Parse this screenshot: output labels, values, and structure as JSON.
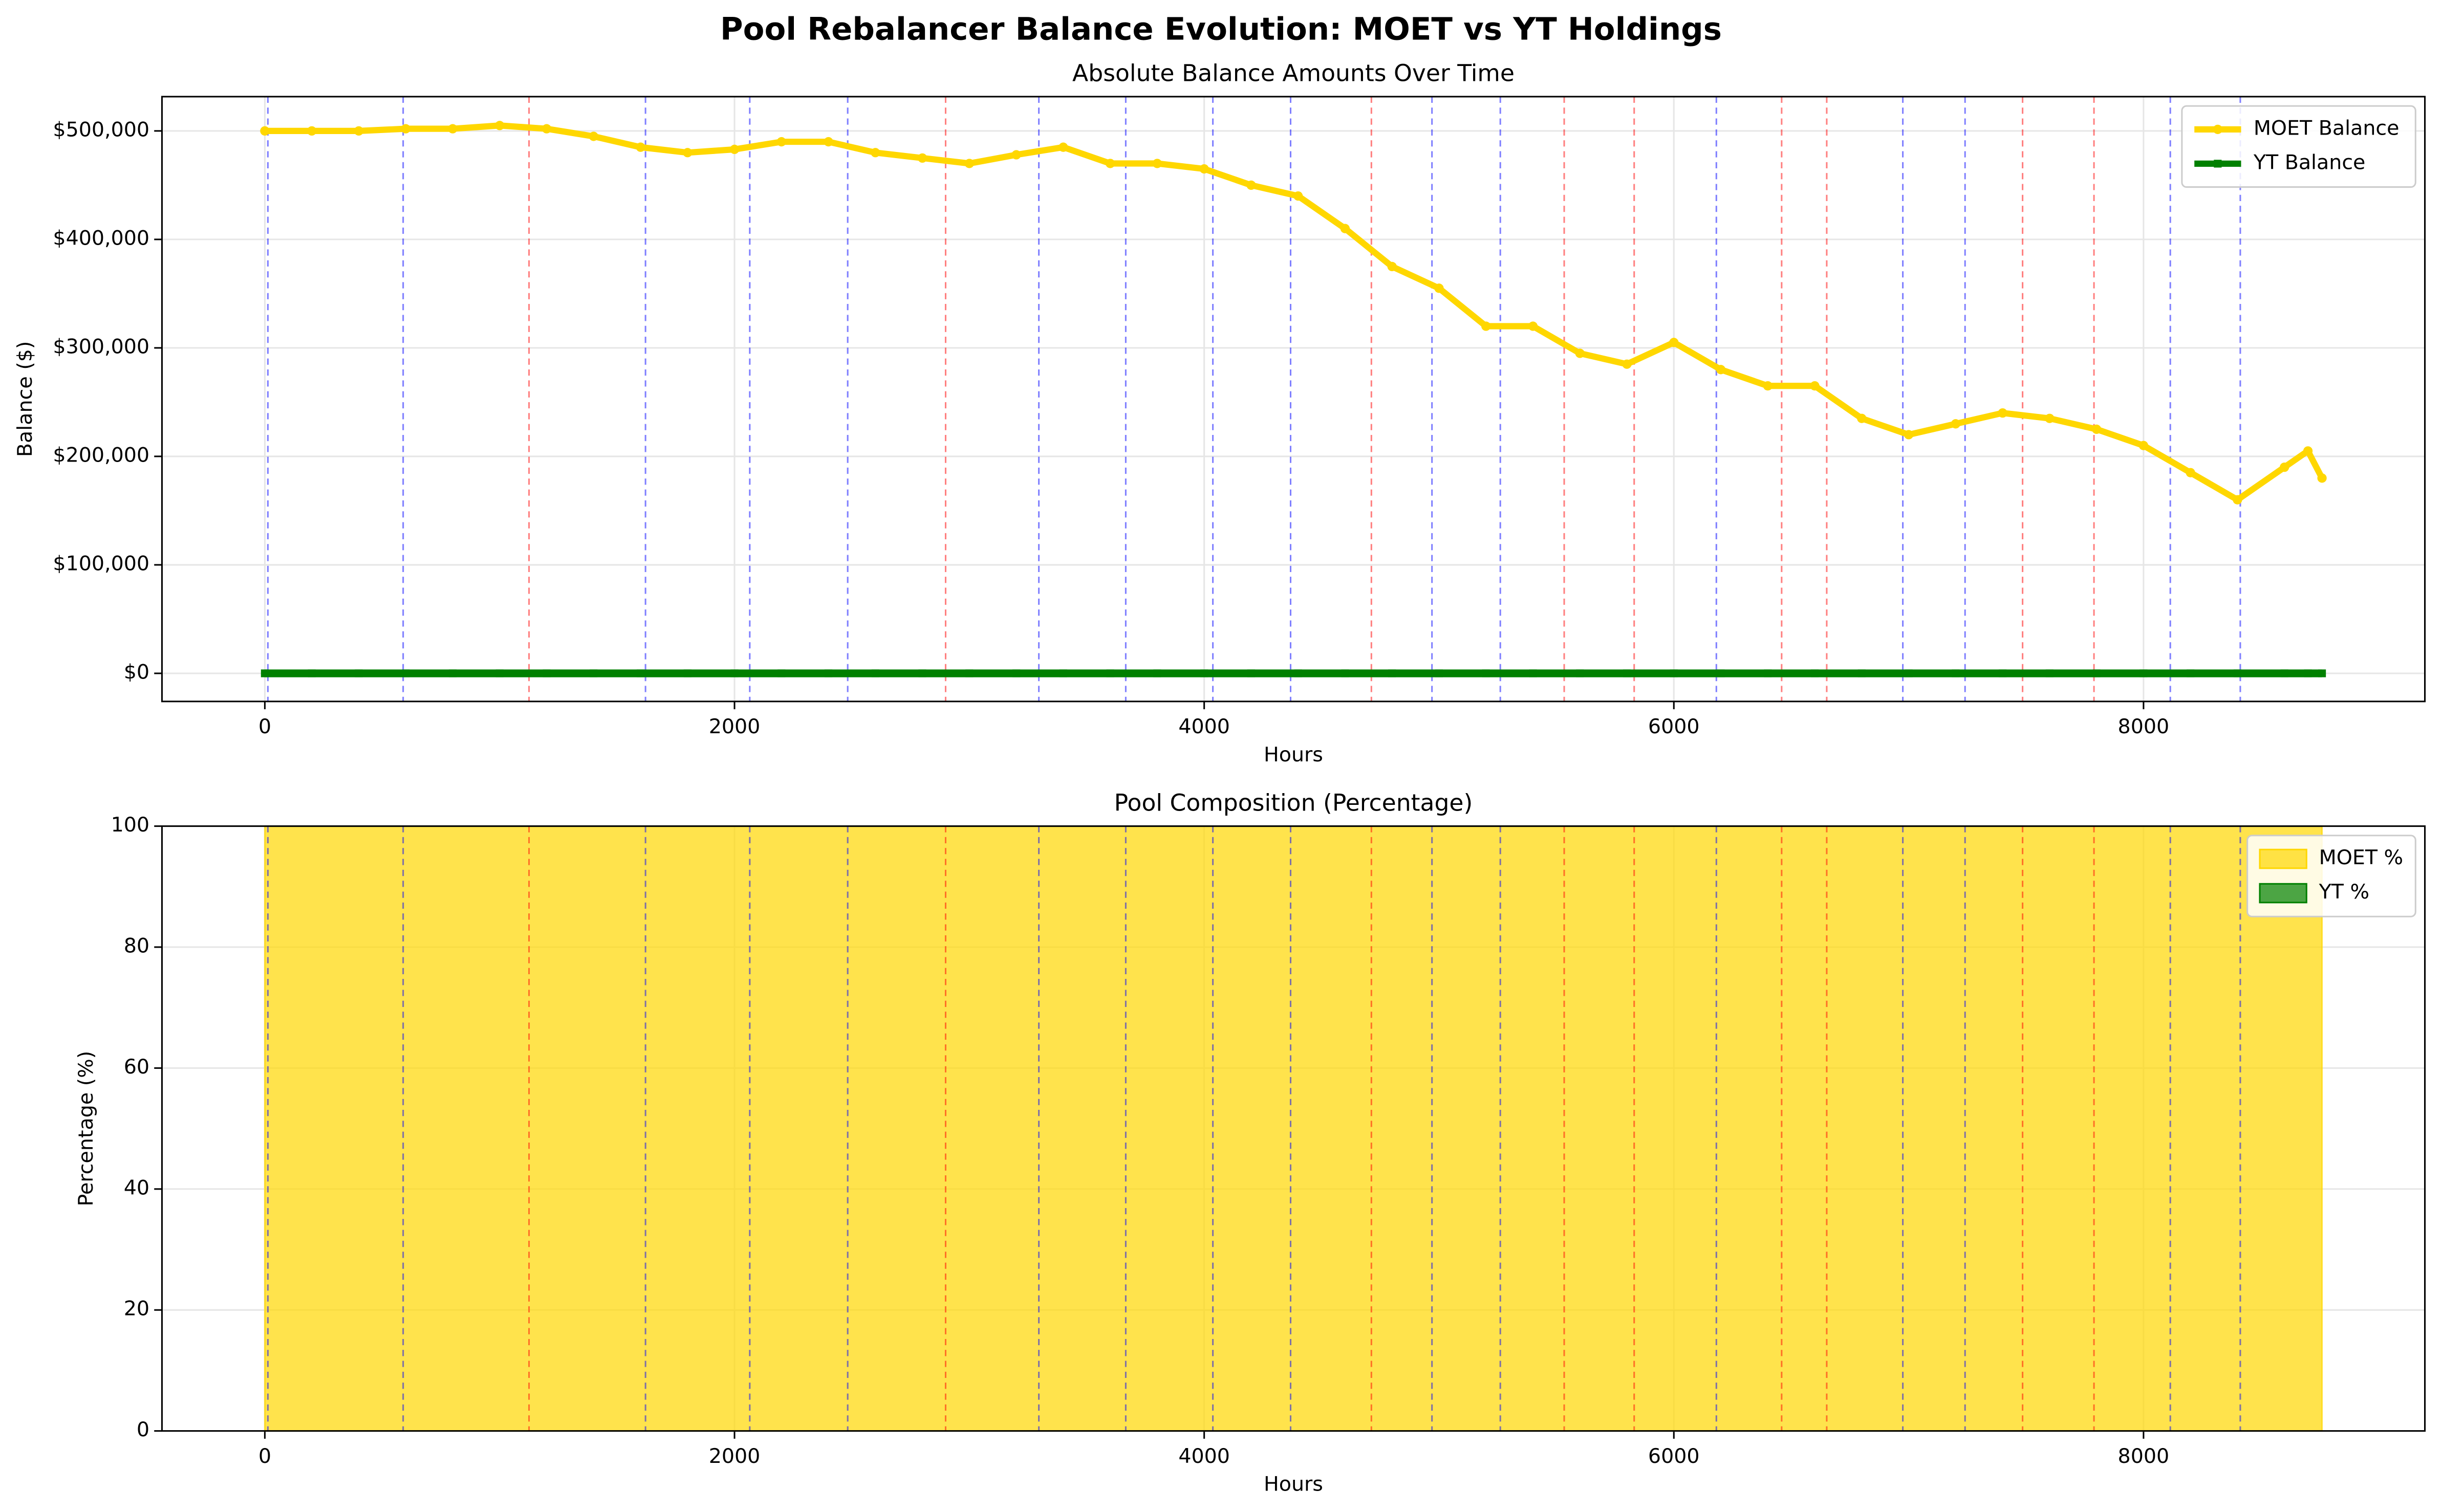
{
  "title": "Pool Rebalancer Balance Evolution: MOET vs YT Holdings",
  "event_lines": [
    {
      "color": "#0000ff",
      "x": [
        13,
        589,
        1621,
        2065,
        2482,
        3296,
        3666,
        4037,
        4368,
        4970,
        5261,
        6181,
        6975,
        7240,
        8114,
        8412
      ]
    },
    {
      "color": "#ff0000",
      "x": [
        1125,
        2899,
        4712,
        5533,
        5831,
        6459,
        6651,
        7485,
        7789
      ]
    }
  ],
  "chart_data": [
    {
      "type": "line",
      "title": "Absolute Balance Amounts Over Time",
      "xlabel": "Hours",
      "ylabel": "Balance ($)",
      "x": [
        0,
        200,
        400,
        600,
        800,
        1000,
        1200,
        1400,
        1600,
        1800,
        2000,
        2200,
        2400,
        2600,
        2800,
        3000,
        3200,
        3400,
        3600,
        3800,
        4000,
        4200,
        4400,
        4600,
        4800,
        5000,
        5200,
        5400,
        5600,
        5800,
        6000,
        6200,
        6400,
        6600,
        6800,
        7000,
        7200,
        7400,
        7600,
        7800,
        8000,
        8200,
        8400,
        8600,
        8700,
        8760
      ],
      "series": [
        {
          "name": "MOET Balance",
          "color": "#ffd700",
          "marker": "circle",
          "values": [
            500000,
            500000,
            500000,
            502000,
            502000,
            505000,
            502000,
            495000,
            485000,
            480000,
            483000,
            490000,
            490000,
            480000,
            475000,
            470000,
            478000,
            485000,
            470000,
            470000,
            465000,
            450000,
            440000,
            410000,
            375000,
            355000,
            320000,
            320000,
            295000,
            285000,
            305000,
            280000,
            265000,
            265000,
            235000,
            220000,
            230000,
            240000,
            235000,
            225000,
            210000,
            185000,
            160000,
            190000,
            205000,
            180000
          ]
        },
        {
          "name": "YT Balance",
          "color": "#008000",
          "marker": "square",
          "values": [
            0,
            0,
            0,
            0,
            0,
            0,
            0,
            0,
            0,
            0,
            0,
            0,
            0,
            0,
            0,
            0,
            0,
            0,
            0,
            0,
            0,
            0,
            0,
            0,
            0,
            0,
            0,
            0,
            0,
            0,
            0,
            0,
            0,
            0,
            0,
            0,
            0,
            0,
            0,
            0,
            0,
            0,
            0,
            0,
            0,
            0
          ]
        }
      ],
      "xlim": [
        -438,
        9198
      ],
      "xticks": [
        0,
        2000,
        4000,
        6000,
        8000
      ],
      "ylim": [
        -25900,
        531600
      ],
      "yticks": [
        {
          "value": 0,
          "label": "$0"
        },
        {
          "value": 100000,
          "label": "$100,000"
        },
        {
          "value": 200000,
          "label": "$200,000"
        },
        {
          "value": 300000,
          "label": "$300,000"
        },
        {
          "value": 400000,
          "label": "$400,000"
        },
        {
          "value": 500000,
          "label": "$500,000"
        }
      ],
      "grid": true,
      "legend": "upper right"
    },
    {
      "type": "area",
      "title": "Pool Composition (Percentage)",
      "xlabel": "Hours",
      "ylabel": "Percentage (%)",
      "x": [
        0,
        8760
      ],
      "series": [
        {
          "name": "MOET %",
          "color": "#ffd700",
          "values": [
            100,
            100
          ]
        },
        {
          "name": "YT %",
          "color": "#008000",
          "values": [
            0,
            0
          ]
        }
      ],
      "xlim": [
        -438,
        9198
      ],
      "xticks": [
        0,
        2000,
        4000,
        6000,
        8000
      ],
      "ylim": [
        0,
        100
      ],
      "yticks": [
        0,
        20,
        40,
        60,
        80,
        100
      ],
      "grid": true,
      "legend": "upper right"
    }
  ]
}
